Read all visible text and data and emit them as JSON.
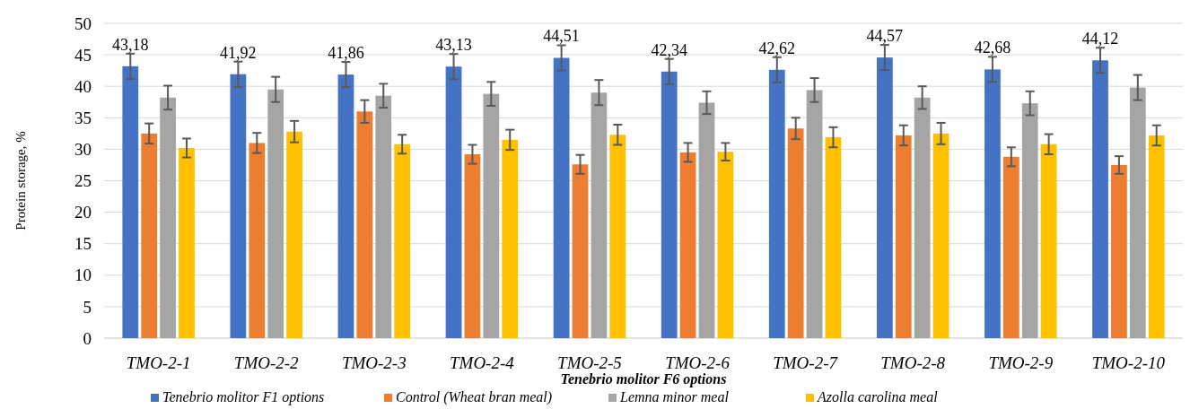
{
  "chart_data": {
    "type": "bar",
    "xlabel": "Tenebrio molitor F6 options",
    "ylabel": "Protein storage, %",
    "categories": [
      "TMO-2-1",
      "TMO-2-2",
      "TMO-2-3",
      "TMO-2-4",
      "TMO-2-5",
      "TMO-2-6",
      "TMO-2-7",
      "TMO-2-8",
      "TMO-2-9",
      "TMO-2-10"
    ],
    "series": [
      {
        "name": "Tenebrio molitor F1 options",
        "color": "#4472c4",
        "values": [
          43.18,
          41.92,
          41.86,
          43.13,
          44.51,
          42.34,
          42.62,
          44.57,
          42.68,
          44.12
        ],
        "errors": [
          2,
          2,
          2,
          2,
          2,
          2,
          2,
          2,
          2,
          2
        ],
        "value_labels": [
          "43,18",
          "41,92",
          "41,86",
          "43,13",
          "44,51",
          "42,34",
          "42,62",
          "44,57",
          "42,68",
          "44,12"
        ]
      },
      {
        "name": "Control (Wheat bran meal)",
        "color": "#ed7d31",
        "values": [
          32.5,
          31,
          36,
          29.2,
          27.6,
          29.5,
          33.3,
          32.2,
          28.8,
          27.5
        ],
        "errors": [
          1.6,
          1.6,
          1.8,
          1.5,
          1.5,
          1.5,
          1.7,
          1.6,
          1.5,
          1.4
        ]
      },
      {
        "name": "Lemna minor meal",
        "color": "#a5a5a5",
        "values": [
          38.2,
          39.5,
          38.5,
          38.8,
          39,
          37.4,
          39.4,
          38.2,
          37.3,
          39.8
        ],
        "errors": [
          1.9,
          2,
          1.9,
          1.9,
          2,
          1.8,
          1.9,
          1.8,
          1.9,
          2
        ]
      },
      {
        "name": "Azolla carolina meal",
        "color": "#ffc000",
        "values": [
          30.2,
          32.8,
          30.8,
          31.5,
          32.3,
          29.6,
          31.9,
          32.5,
          30.8,
          32.2
        ],
        "errors": [
          1.5,
          1.7,
          1.5,
          1.6,
          1.6,
          1.4,
          1.6,
          1.7,
          1.6,
          1.6
        ]
      }
    ],
    "ylim": [
      0,
      50
    ],
    "yticks": [
      0,
      5,
      10,
      15,
      20,
      25,
      30,
      35,
      40,
      45,
      50
    ],
    "grid": "y",
    "legend": "bottom"
  }
}
